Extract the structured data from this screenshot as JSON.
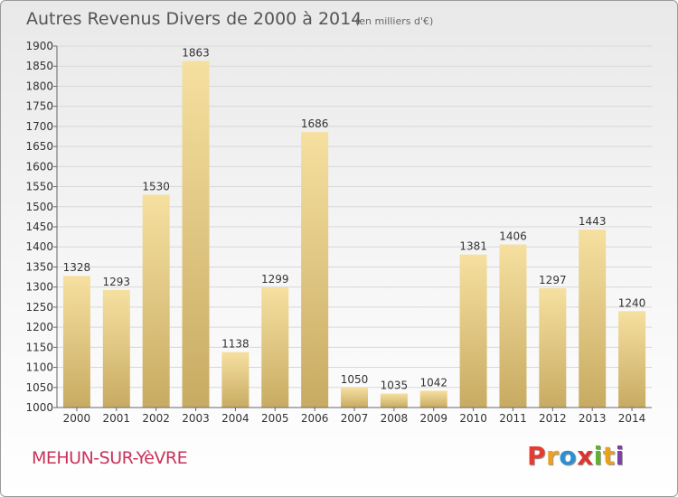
{
  "header": {
    "title": "Autres Revenus Divers de 2000 à 2014",
    "subtitle": "(en milliers d'€)"
  },
  "footer": {
    "city": "MEHUN-SUR-YèVRE",
    "brand_letters": [
      "P",
      "r",
      "o",
      "x",
      "i",
      "t",
      "i"
    ],
    "brand_colors": [
      "#e63b2e",
      "#f0a020",
      "#2d8fd0",
      "#d9362e",
      "#5fb130",
      "#e8a21d",
      "#7f3fa6"
    ]
  },
  "colors": {
    "bar_top": "#f6e0a0",
    "bar_bottom": "#c8ab62",
    "grid": "#d8d8d8",
    "axis": "#666666",
    "text": "#333333"
  },
  "chart_data": {
    "type": "bar",
    "title": "Autres Revenus Divers de 2000 à 2014",
    "xlabel": "",
    "ylabel": "",
    "ylim": [
      1000,
      1900
    ],
    "ytick_step": 50,
    "grid": true,
    "categories": [
      "2000",
      "2001",
      "2002",
      "2003",
      "2004",
      "2005",
      "2006",
      "2007",
      "2008",
      "2009",
      "2010",
      "2011",
      "2012",
      "2013",
      "2014"
    ],
    "values": [
      1328,
      1293,
      1530,
      1863,
      1138,
      1299,
      1686,
      1050,
      1035,
      1042,
      1381,
      1406,
      1297,
      1443,
      1240
    ]
  }
}
